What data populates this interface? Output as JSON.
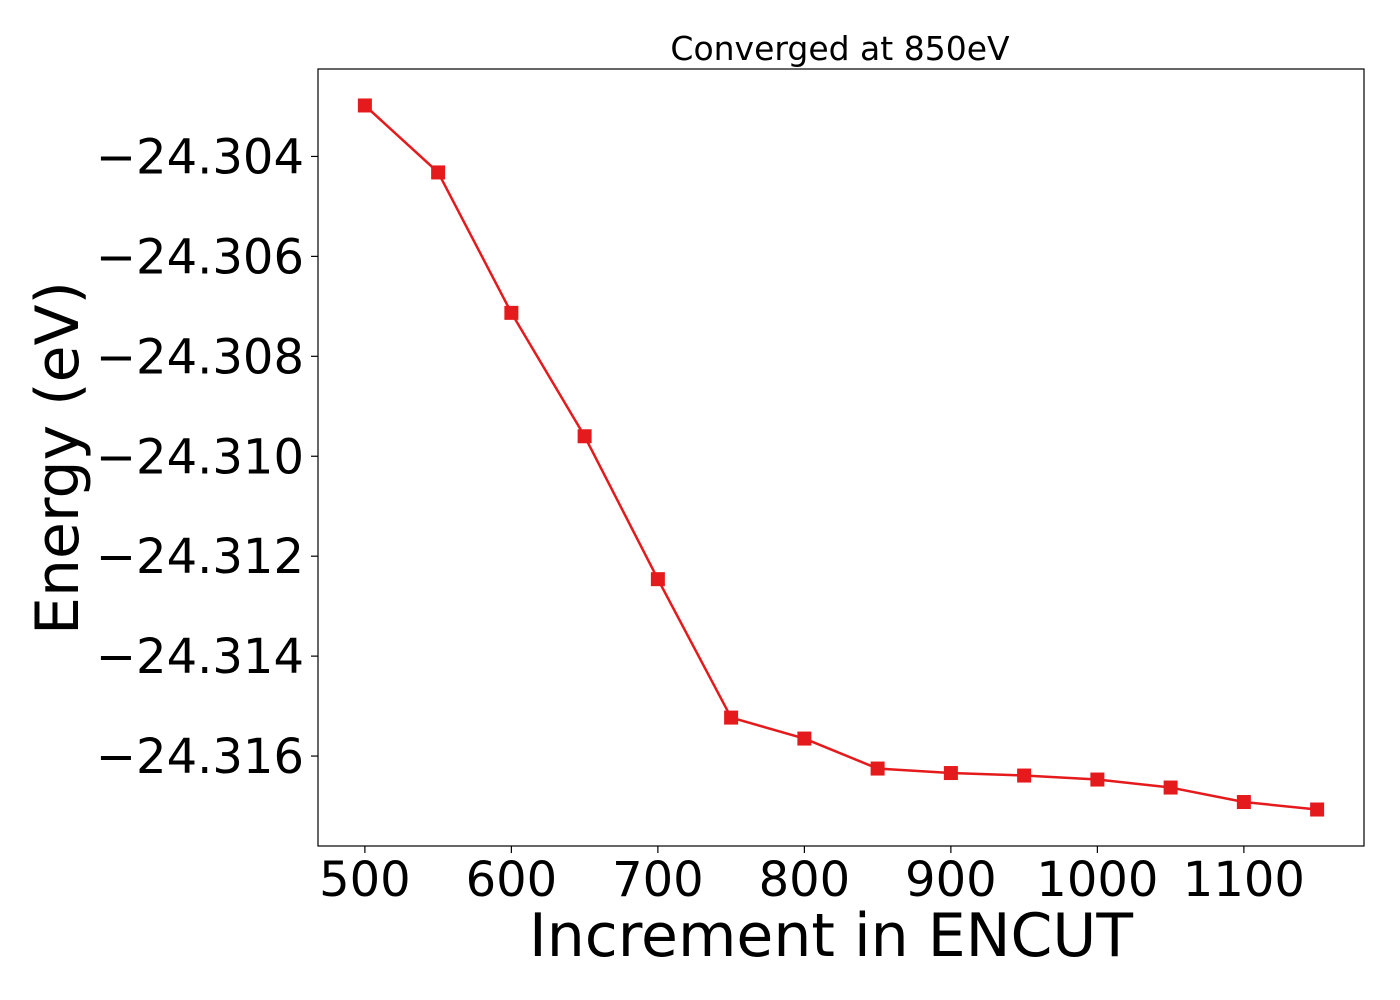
{
  "chart_data": {
    "type": "line",
    "title": "Converged at 850eV",
    "xlabel": "Increment in ENCUT",
    "ylabel": "Energy (eV)",
    "x_ticks": [
      500,
      600,
      700,
      800,
      900,
      1000,
      1100
    ],
    "y_ticks": [
      -24.304,
      -24.306,
      -24.308,
      -24.31,
      -24.312,
      -24.314,
      -24.316
    ],
    "y_tick_labels": [
      "−24.304",
      "−24.306",
      "−24.308",
      "−24.310",
      "−24.312",
      "−24.314",
      "−24.316"
    ],
    "xlim": [
      468,
      1182
    ],
    "ylim": [
      -24.3178,
      -24.30225
    ],
    "grid": false,
    "series": [
      {
        "color": "#e41a1c",
        "marker": "square",
        "x": [
          500,
          550,
          600,
          650,
          700,
          750,
          800,
          850,
          900,
          950,
          1000,
          1050,
          1100,
          1150
        ],
        "y": [
          -24.30298,
          -24.30432,
          -24.30713,
          -24.3096,
          -24.31246,
          -24.31523,
          -24.31565,
          -24.31625,
          -24.31634,
          -24.31639,
          -24.31647,
          -24.31663,
          -24.31692,
          -24.31707
        ]
      }
    ]
  }
}
